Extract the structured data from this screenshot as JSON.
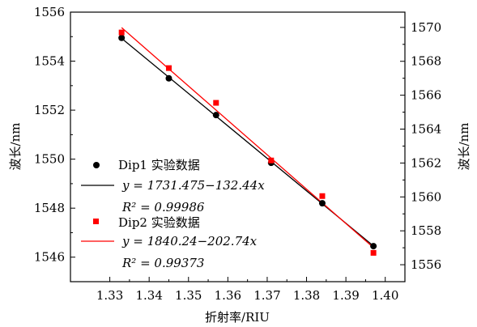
{
  "chart_data": {
    "type": "scatter",
    "xlabel": "折射率/RIU",
    "ylabel_left": "波长/nm",
    "ylabel_right": "波长/nm",
    "xlim": [
      1.32,
      1.405
    ],
    "ylim_left": [
      1545,
      1556
    ],
    "ylim_right": [
      1555,
      1570.9
    ],
    "x_ticks": [
      1.33,
      1.34,
      1.35,
      1.36,
      1.37,
      1.38,
      1.39,
      1.4
    ],
    "x_tick_labels": [
      "1.33",
      "1.34",
      "1.35",
      "1.36",
      "1.37",
      "1.38",
      "1.39",
      "1.40"
    ],
    "y_ticks_left": [
      1546,
      1548,
      1550,
      1552,
      1554,
      1556
    ],
    "y_ticks_right": [
      1556,
      1558,
      1560,
      1562,
      1564,
      1566,
      1568,
      1570
    ],
    "grid": false,
    "legend_position": "left",
    "series": [
      {
        "name": "Dip1 实验数据",
        "axis": "left",
        "color": "#000000",
        "marker": "circle",
        "x": [
          1.333,
          1.345,
          1.357,
          1.371,
          1.384,
          1.397
        ],
        "y": [
          1554.95,
          1553.3,
          1551.8,
          1549.85,
          1548.2,
          1546.45
        ]
      },
      {
        "name": "Dip2 实验数据",
        "axis": "right",
        "color": "#ff0000",
        "marker": "square",
        "x": [
          1.333,
          1.345,
          1.357,
          1.371,
          1.384,
          1.397
        ],
        "y": [
          1569.7,
          1567.6,
          1565.55,
          1562.15,
          1560.05,
          1556.7
        ]
      }
    ],
    "fits": [
      {
        "axis": "left",
        "color": "#000000",
        "slope": -132.44,
        "intercept": 1731.475,
        "x_range": [
          1.333,
          1.397
        ],
        "equation": "y = 1731.475−132.44x",
        "r2_text": "R² = 0.99986"
      },
      {
        "axis": "right",
        "color": "#ff0000",
        "slope": -202.74,
        "intercept": 1840.24,
        "x_range": [
          1.333,
          1.397
        ],
        "equation": "y = 1840.24−202.74x",
        "r2_text": "R² = 0.99373"
      }
    ]
  }
}
